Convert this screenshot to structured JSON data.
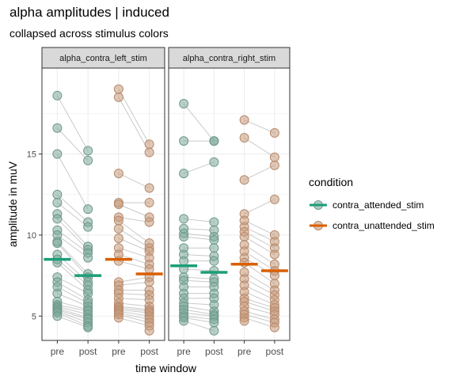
{
  "chart_data": {
    "type": "scatter",
    "title": "alpha amplitudes | induced",
    "subtitle": "collapsed across stimulus colors",
    "xlabel": "time window",
    "ylabel": "amplitude in muV",
    "x_ticks": [
      "pre",
      "post",
      "pre",
      "post"
    ],
    "y_ticks": [
      5,
      10,
      15
    ],
    "ylim": [
      3.5,
      20.3
    ],
    "legend": {
      "title": "condition",
      "position": "right",
      "entries": [
        {
          "label": "contra_attended_stim",
          "color": "#1b9e77",
          "point_color": "#7fa99c"
        },
        {
          "label": "contra_unattended_stim",
          "color": "#d95f02",
          "point_color": "#c79a7c"
        }
      ]
    },
    "facets": [
      {
        "label": "alpha_contra_left_stim",
        "attended": {
          "pre": [
            18.6,
            16.6,
            15.0,
            12.5,
            12.0,
            11.3,
            11.0,
            10.3,
            10.0,
            9.6,
            9.5,
            8.8,
            8.5,
            8.3,
            7.4,
            7.1,
            6.8,
            6.4,
            5.9,
            5.7,
            5.6,
            5.5,
            5.4,
            5.3,
            5.2,
            5.0
          ],
          "post": [
            15.2,
            14.6,
            11.6,
            10.8,
            10.5,
            9.3,
            9.1,
            8.9,
            8.6,
            7.6,
            7.4,
            7.1,
            6.9,
            6.6,
            6.4,
            6.0,
            5.8,
            5.6,
            5.4,
            5.3,
            5.1,
            4.9,
            4.8,
            4.6,
            4.4,
            4.3
          ],
          "mean_pre": 8.5,
          "mean_post": 7.5
        },
        "unattended": {
          "pre": [
            19.0,
            18.5,
            13.8,
            12.0,
            11.9,
            11.1,
            10.9,
            10.4,
            9.8,
            9.2,
            8.8,
            8.4,
            7.1,
            6.9,
            6.6,
            6.4,
            6.1,
            5.8,
            5.6,
            5.5,
            5.4,
            5.3,
            5.2,
            5.1,
            4.9
          ],
          "post": [
            15.6,
            15.1,
            12.9,
            12.0,
            11.1,
            10.8,
            9.5,
            9.2,
            9.0,
            8.6,
            8.2,
            7.9,
            7.4,
            7.1,
            6.6,
            6.3,
            6.0,
            5.6,
            5.4,
            5.3,
            5.2,
            5.0,
            4.8,
            4.6,
            4.4,
            4.1
          ],
          "mean_pre": 8.5,
          "mean_post": 7.6
        }
      },
      {
        "label": "alpha_contra_right_stim",
        "attended": {
          "pre": [
            18.1,
            15.8,
            13.8,
            11.0,
            10.4,
            10.1,
            9.9,
            9.2,
            8.8,
            8.4,
            7.9,
            7.4,
            7.2,
            6.8,
            6.4,
            6.1,
            5.8,
            5.6,
            5.4,
            5.2,
            5.0,
            4.9,
            4.7
          ],
          "post": [
            15.8,
            15.8,
            14.5,
            10.8,
            10.3,
            9.9,
            9.7,
            9.2,
            8.7,
            8.4,
            7.8,
            7.3,
            7.1,
            6.8,
            6.4,
            6.1,
            5.7,
            5.3,
            5.1,
            5.0,
            4.8,
            4.6,
            4.1
          ],
          "mean_pre": 8.1,
          "mean_post": 7.7
        },
        "unattended": {
          "pre": [
            17.1,
            16.0,
            13.4,
            11.3,
            10.9,
            10.5,
            10.2,
            9.9,
            9.4,
            9.0,
            8.6,
            8.3,
            7.7,
            7.3,
            6.9,
            6.5,
            6.1,
            5.9,
            5.6,
            5.3,
            5.1,
            4.9,
            4.7
          ],
          "post": [
            16.3,
            14.8,
            14.3,
            12.2,
            10.0,
            9.6,
            9.2,
            8.8,
            8.2,
            7.8,
            7.5,
            7.0,
            6.6,
            6.3,
            6.0,
            5.7,
            5.5,
            5.3,
            5.1,
            4.8,
            4.6,
            4.3
          ],
          "mean_pre": 8.2,
          "mean_post": 7.8
        }
      }
    ]
  }
}
